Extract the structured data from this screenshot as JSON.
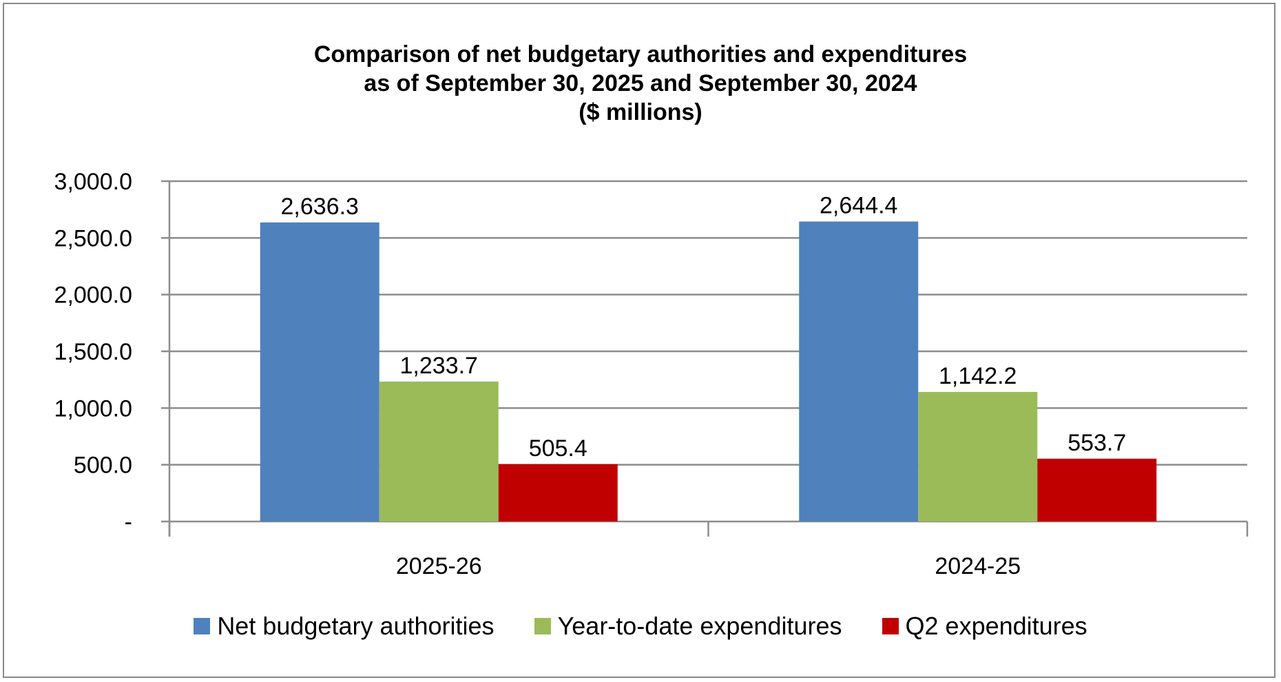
{
  "chart_data": {
    "type": "bar",
    "title_lines": [
      "Comparison of net budgetary authorities and expenditures",
      "as of September 30, 2025 and September 30, 2024",
      "($ millions)"
    ],
    "categories": [
      "2025-26",
      "2024-25"
    ],
    "series": [
      {
        "name": "Net budgetary authorities",
        "values": [
          2636.3,
          2644.4
        ],
        "labels": [
          "2,636.3",
          "2,644.4"
        ],
        "color": "#4f81bd"
      },
      {
        "name": "Year-to-date expenditures",
        "values": [
          1233.7,
          1142.2
        ],
        "labels": [
          "1,233.7",
          "1,142.2"
        ],
        "color": "#9bbb59"
      },
      {
        "name": "Q2 expenditures",
        "values": [
          505.4,
          553.7
        ],
        "labels": [
          "505.4",
          "553.7"
        ],
        "color": "#c00000"
      }
    ],
    "ylim": [
      0,
      3000
    ],
    "yticks": [
      0,
      500,
      1000,
      1500,
      2000,
      2500,
      3000
    ],
    "ytick_labels": [
      "-",
      "500.0",
      "1,000.0",
      "1,500.0",
      "2,000.0",
      "2,500.0",
      "3,000.0"
    ],
    "grid": true,
    "legend_position": "bottom"
  }
}
